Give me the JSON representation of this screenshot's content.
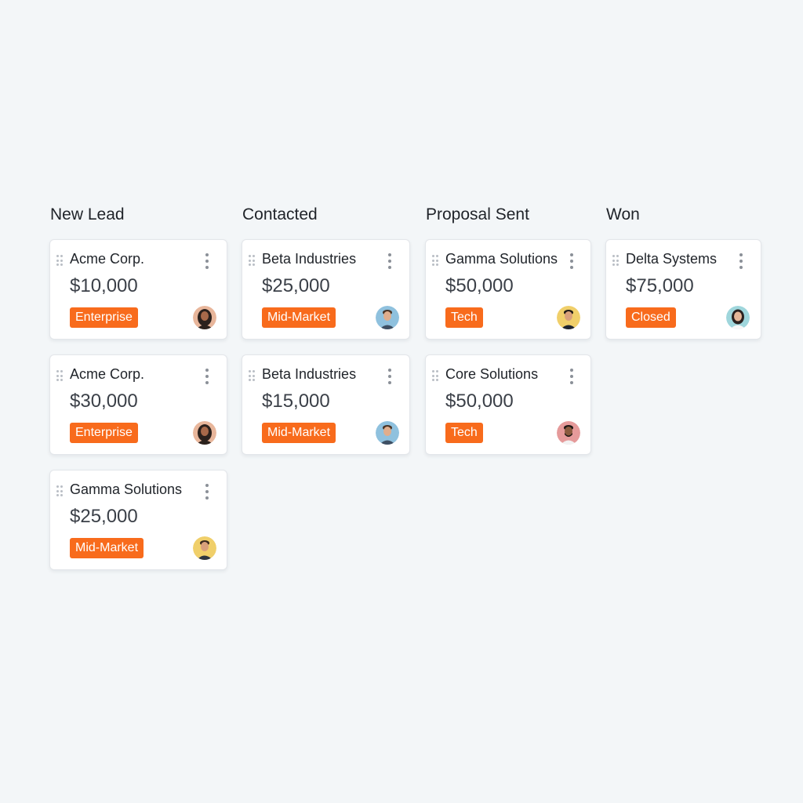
{
  "columns": [
    {
      "title": "New Lead",
      "cards": [
        {
          "company": "Acme Corp.",
          "amount": "$10,000",
          "tag": "Enterprise",
          "avatar_icon": "woman-dark-hair-avatar-icon"
        },
        {
          "company": "Acme Corp.",
          "amount": "$30,000",
          "tag": "Enterprise",
          "avatar_icon": "woman-dark-hair-avatar-icon"
        },
        {
          "company": "Gamma Solutions",
          "amount": "$25,000",
          "tag": "Mid-Market",
          "avatar_icon": "man-avatar-icon"
        }
      ]
    },
    {
      "title": "Contacted",
      "cards": [
        {
          "company": "Beta Industries",
          "amount": "$25,000",
          "tag": "Mid-Market",
          "avatar_icon": "man-avatar-icon"
        },
        {
          "company": "Beta Industries",
          "amount": "$15,000",
          "tag": "Mid-Market",
          "avatar_icon": "man-avatar-icon"
        }
      ]
    },
    {
      "title": "Proposal Sent",
      "cards": [
        {
          "company": "Gamma Solutions",
          "amount": "$50,000",
          "tag": "Tech",
          "avatar_icon": "man-avatar-icon"
        },
        {
          "company": "Core Solutions",
          "amount": "$50,000",
          "tag": "Tech",
          "avatar_icon": "man-beard-avatar-icon"
        }
      ]
    },
    {
      "title": "Won",
      "cards": [
        {
          "company": "Delta Systems",
          "amount": "$75,000",
          "tag": "Closed",
          "avatar_icon": "woman-avatar-icon"
        }
      ]
    }
  ],
  "colors": {
    "tag_background": "#f86b1c",
    "tag_text": "#ffffff",
    "card_background": "#ffffff",
    "page_background": "#f3f6f8"
  }
}
